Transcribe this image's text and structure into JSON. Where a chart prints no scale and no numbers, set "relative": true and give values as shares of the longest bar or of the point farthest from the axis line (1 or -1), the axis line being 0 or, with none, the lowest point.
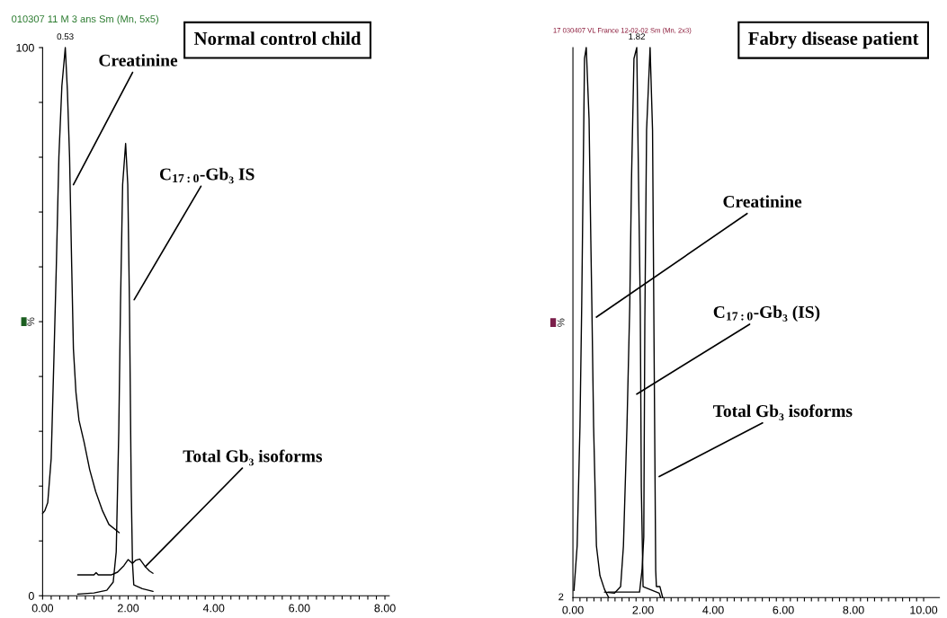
{
  "chart_data": [
    {
      "type": "line",
      "title": "010307 11 M 3 ans Sm (Mn, 5x5)",
      "ylabel": "%",
      "xlim": [
        0,
        8.1
      ],
      "ylim": [
        0,
        100
      ],
      "xticks": [
        {
          "value": 0,
          "label": "0.00"
        },
        {
          "value": 0.2,
          "label": null
        },
        {
          "value": 0.4,
          "label": null
        },
        {
          "value": 0.6,
          "label": null
        },
        {
          "value": 0.8,
          "label": null
        },
        {
          "value": 1,
          "label": null
        },
        {
          "value": 1.2,
          "label": null
        },
        {
          "value": 1.4,
          "label": null
        },
        {
          "value": 1.6,
          "label": null
        },
        {
          "value": 1.8,
          "label": null
        },
        {
          "value": 2,
          "label": "2.00"
        },
        {
          "value": 2.2,
          "label": null
        },
        {
          "value": 2.4,
          "label": null
        },
        {
          "value": 2.6,
          "label": null
        },
        {
          "value": 2.8,
          "label": null
        },
        {
          "value": 3,
          "label": null
        },
        {
          "value": 3.2,
          "label": null
        },
        {
          "value": 3.4,
          "label": null
        },
        {
          "value": 3.6,
          "label": null
        },
        {
          "value": 3.8,
          "label": null
        },
        {
          "value": 4,
          "label": "4.00"
        },
        {
          "value": 4.2,
          "label": null
        },
        {
          "value": 4.4,
          "label": null
        },
        {
          "value": 4.6,
          "label": null
        },
        {
          "value": 4.8,
          "label": null
        },
        {
          "value": 5,
          "label": null
        },
        {
          "value": 5.2,
          "label": null
        },
        {
          "value": 5.4,
          "label": null
        },
        {
          "value": 5.6,
          "label": null
        },
        {
          "value": 5.8,
          "label": null
        },
        {
          "value": 6,
          "label": "6.00"
        },
        {
          "value": 6.2,
          "label": null
        },
        {
          "value": 6.4,
          "label": null
        },
        {
          "value": 6.6,
          "label": null
        },
        {
          "value": 6.8,
          "label": null
        },
        {
          "value": 7,
          "label": null
        },
        {
          "value": 7.2,
          "label": null
        },
        {
          "value": 7.4,
          "label": null
        },
        {
          "value": 7.6,
          "label": null
        },
        {
          "value": 7.8,
          "label": null
        },
        {
          "value": 8,
          "label": "8.00"
        }
      ],
      "yticks": [
        0,
        {
          "value": 10,
          "label": null
        },
        {
          "value": 20,
          "label": null
        },
        {
          "value": 30,
          "label": null
        },
        {
          "value": 40,
          "label": null
        },
        {
          "value": 50,
          "label": null
        },
        {
          "value": 60,
          "label": null
        },
        {
          "value": 70,
          "label": null
        },
        {
          "value": 80,
          "label": null
        },
        {
          "value": 90,
          "label": null
        },
        100
      ],
      "series": [
        {
          "color": "#000000",
          "x": [
            0,
            0.05,
            0.12,
            0.2,
            0.27,
            0.32,
            0.38,
            0.45,
            0.53,
            0.58,
            0.63,
            0.68,
            0.72,
            0.78,
            0.85,
            0.97,
            1.1,
            1.24,
            1.4,
            1.55,
            1.79
          ],
          "values": [
            15,
            15.5,
            17,
            25,
            45,
            60,
            80,
            93,
            100,
            92,
            80,
            60,
            45,
            37,
            32,
            28,
            23,
            19,
            15.5,
            13,
            11.5
          ]
        },
        {
          "color": "#000000",
          "x": [
            0.82,
            1.2,
            1.5,
            1.65,
            1.72,
            1.78,
            1.82,
            1.87,
            1.94,
            1.99,
            2.03,
            2.07,
            2.1,
            2.13,
            2.33,
            2.58
          ],
          "values": [
            0.3,
            0.5,
            1,
            2.5,
            8,
            30,
            53,
            75,
            82.5,
            75,
            53,
            20,
            6,
            2,
            1.3,
            0.8
          ]
        },
        {
          "color": "#000000",
          "x": [
            0.82,
            1.2,
            1.25,
            1.3,
            1.6,
            1.75,
            1.9,
            2.0,
            2.1,
            2.18,
            2.27,
            2.4,
            2.5,
            2.58
          ],
          "values": [
            3.8,
            3.8,
            4.2,
            3.8,
            3.8,
            4.3,
            5.5,
            6.6,
            5.9,
            6.5,
            6.7,
            5.3,
            4.5,
            4.1
          ]
        }
      ],
      "annotations": [
        "Normal control child",
        {
          "text": "0.53",
          "x": 0.53,
          "y": 100
        },
        {
          "text": "Creatinine",
          "x": 0.72,
          "y": 75
        },
        {
          "text": "C$_{17:0}$-Gb₃ IS",
          "x": 2.14,
          "y": 54
        },
        {
          "text": "Total Gb₃ isoforms",
          "x": 2.4,
          "y": 5.3
        }
      ]
    },
    {
      "type": "line",
      "title": "17 030407 VL France 12-02-02 Sm (Mn, 2x3)",
      "ylabel": "%",
      "relative": true,
      "xlim": [
        0,
        10.45
      ],
      "xticks": [
        {
          "value": 0,
          "label": "0.00"
        },
        {
          "value": 0.2,
          "label": null
        },
        {
          "value": 0.4,
          "label": null
        },
        {
          "value": 0.6,
          "label": null
        },
        {
          "value": 0.8,
          "label": null
        },
        {
          "value": 1,
          "label": null
        },
        {
          "value": 1.2,
          "label": null
        },
        {
          "value": 1.4,
          "label": null
        },
        {
          "value": 1.6,
          "label": null
        },
        {
          "value": 1.8,
          "label": null
        },
        {
          "value": 2,
          "label": "2.00"
        },
        {
          "value": 2.2,
          "label": null
        },
        {
          "value": 2.4,
          "label": null
        },
        {
          "value": 2.6,
          "label": null
        },
        {
          "value": 2.8,
          "label": null
        },
        {
          "value": 3,
          "label": null
        },
        {
          "value": 3.2,
          "label": null
        },
        {
          "value": 3.4,
          "label": null
        },
        {
          "value": 3.6,
          "label": null
        },
        {
          "value": 3.8,
          "label": null
        },
        {
          "value": 4,
          "label": "4.00"
        },
        {
          "value": 4.2,
          "label": null
        },
        {
          "value": 4.4,
          "label": null
        },
        {
          "value": 4.6,
          "label": null
        },
        {
          "value": 4.8,
          "label": null
        },
        {
          "value": 5,
          "label": null
        },
        {
          "value": 5.2,
          "label": null
        },
        {
          "value": 5.4,
          "label": null
        },
        {
          "value": 5.6,
          "label": null
        },
        {
          "value": 5.8,
          "label": null
        },
        {
          "value": 6,
          "label": "6.00"
        },
        {
          "value": 6.2,
          "label": null
        },
        {
          "value": 6.4,
          "label": null
        },
        {
          "value": 6.6,
          "label": null
        },
        {
          "value": 6.8,
          "label": null
        },
        {
          "value": 7,
          "label": null
        },
        {
          "value": 7.2,
          "label": null
        },
        {
          "value": 7.4,
          "label": null
        },
        {
          "value": 7.6,
          "label": null
        },
        {
          "value": 7.8,
          "label": null
        },
        {
          "value": 8,
          "label": "8.00"
        },
        {
          "value": 8.2,
          "label": null
        },
        {
          "value": 8.4,
          "label": null
        },
        {
          "value": 8.6,
          "label": null
        },
        {
          "value": 8.8,
          "label": null
        },
        {
          "value": 9,
          "label": null
        },
        {
          "value": 9.2,
          "label": null
        },
        {
          "value": 9.4,
          "label": null
        },
        {
          "value": 9.6,
          "label": null
        },
        {
          "value": 9.8,
          "label": null
        },
        {
          "value": 10,
          "label": "10.00"
        }
      ],
      "series": [
        {
          "color": "#000000",
          "x": [
            0.03,
            0.12,
            0.2,
            0.25,
            0.33,
            0.38,
            0.46,
            0.51,
            0.54,
            0.59,
            0.67,
            0.77,
            0.9,
            1.02
          ],
          "values": [
            0.013,
            0.094,
            0.31,
            0.53,
            0.98,
            1,
            0.87,
            0.65,
            0.53,
            0.31,
            0.094,
            0.04,
            0.015,
            0
          ]
        },
        {
          "color": "#000000",
          "x": [
            0.9,
            1.18,
            1.36,
            1.44,
            1.54,
            1.62,
            1.67,
            1.74,
            1.82,
            1.87,
            1.92,
            1.95,
            2.0,
            2.46,
            2.5
          ],
          "values": [
            0.01,
            0.008,
            0.02,
            0.094,
            0.31,
            0.53,
            0.76,
            0.98,
            1,
            0.76,
            0.53,
            0.2,
            0.02,
            0.008,
            0
          ]
        },
        {
          "color": "#000000",
          "x": [
            1.0,
            1.9,
            1.97,
            2.02,
            2.05,
            2.1,
            2.2,
            2.27,
            2.32,
            2.36,
            2.38,
            2.48,
            2.56
          ],
          "values": [
            0.01,
            0.01,
            0.05,
            0.11,
            0.5,
            0.85,
            1,
            0.85,
            0.4,
            0.05,
            0.02,
            0.02,
            0
          ]
        }
      ],
      "annotations": [
        "Fabry disease patient",
        {
          "text": "1.82",
          "x": 1.82,
          "y": 1
        },
        {
          "text": "Creatinine",
          "x": 0.67,
          "y": 0.51
        },
        {
          "text": "C$_{17:0}$-Gb₃ (IS)",
          "x": 1.82,
          "y": 0.37
        },
        {
          "text": "Total Gb₃ isoforms",
          "x": 2.46,
          "y": 0.22
        },
        "2"
      ]
    }
  ]
}
